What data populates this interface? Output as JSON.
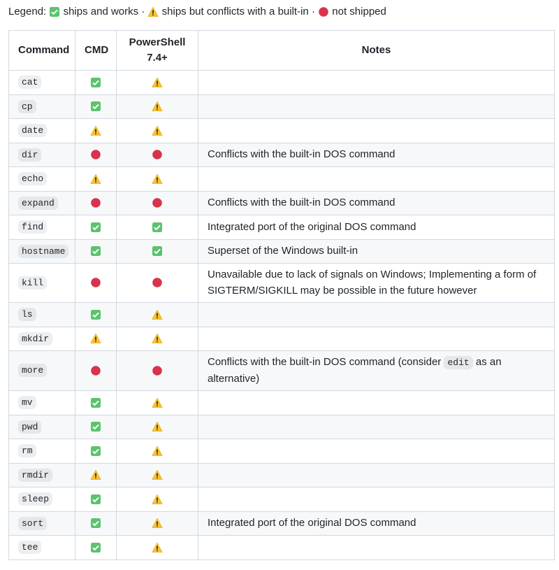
{
  "legend": {
    "label": "Legend:",
    "separator": "·",
    "items": [
      {
        "icon": "✅",
        "text": "ships and works"
      },
      {
        "icon": "⚠️",
        "text": "ships but conflicts with a built-in"
      },
      {
        "icon": "🔴",
        "text": "not shipped"
      }
    ]
  },
  "table": {
    "headers": [
      "Command",
      "CMD",
      "PowerShell 7.4+",
      "Notes"
    ],
    "rows": [
      {
        "command": "cat",
        "cmd": "✅",
        "powershell": "⚠️"
      },
      {
        "command": "cp",
        "cmd": "✅",
        "powershell": "⚠️"
      },
      {
        "command": "date",
        "cmd": "⚠️",
        "powershell": "⚠️"
      },
      {
        "command": "dir",
        "cmd": "🔴",
        "powershell": "🔴",
        "notes": [
          {
            "text": "Conflicts with the built-in DOS command"
          }
        ]
      },
      {
        "command": "echo",
        "cmd": "⚠️",
        "powershell": "⚠️"
      },
      {
        "command": "expand",
        "cmd": "🔴",
        "powershell": "🔴",
        "notes": [
          {
            "text": "Conflicts with the built-in DOS command"
          }
        ]
      },
      {
        "command": "find",
        "cmd": "✅",
        "powershell": "✅",
        "notes": [
          {
            "text": "Integrated port of the original DOS command"
          }
        ]
      },
      {
        "command": "hostname",
        "cmd": "✅",
        "powershell": "✅",
        "notes": [
          {
            "text": "Superset of the Windows built-in"
          }
        ]
      },
      {
        "command": "kill",
        "cmd": "🔴",
        "powershell": "🔴",
        "notes": [
          {
            "text": "Unavailable due to lack of signals on Windows; Implementing a form of SIGTERM/SIGKILL may be possible in the future however"
          }
        ]
      },
      {
        "command": "ls",
        "cmd": "✅",
        "powershell": "⚠️"
      },
      {
        "command": "mkdir",
        "cmd": "⚠️",
        "powershell": "⚠️"
      },
      {
        "command": "more",
        "cmd": "🔴",
        "powershell": "🔴",
        "notes": [
          {
            "text": "Conflicts with the built-in DOS command (consider "
          },
          {
            "code": "edit"
          },
          {
            "text": " as an alternative)"
          }
        ]
      },
      {
        "command": "mv",
        "cmd": "✅",
        "powershell": "⚠️"
      },
      {
        "command": "pwd",
        "cmd": "✅",
        "powershell": "⚠️"
      },
      {
        "command": "rm",
        "cmd": "✅",
        "powershell": "⚠️"
      },
      {
        "command": "rmdir",
        "cmd": "⚠️",
        "powershell": "⚠️"
      },
      {
        "command": "sleep",
        "cmd": "✅",
        "powershell": "⚠️"
      },
      {
        "command": "sort",
        "cmd": "✅",
        "powershell": "⚠️",
        "notes": [
          {
            "text": "Integrated port of the original DOS command"
          }
        ]
      },
      {
        "command": "tee",
        "cmd": "✅",
        "powershell": "⚠️"
      }
    ]
  }
}
